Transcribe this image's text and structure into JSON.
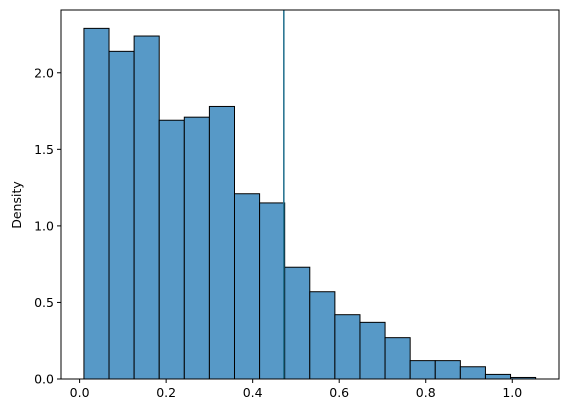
{
  "chart_data": {
    "type": "bar",
    "subtype": "histogram",
    "title": "",
    "xlabel": "",
    "ylabel": "Density",
    "xlim": [
      -0.043,
      1.108
    ],
    "ylim": [
      0,
      2.41
    ],
    "xticks": [
      0.0,
      0.2,
      0.4,
      0.6,
      0.8,
      1.0
    ],
    "xtick_labels": [
      "0.0",
      "0.2",
      "0.4",
      "0.6",
      "0.8",
      "1.0"
    ],
    "yticks": [
      0.0,
      0.5,
      1.0,
      1.5,
      2.0
    ],
    "ytick_labels": [
      "0.0",
      "0.5",
      "1.0",
      "1.5",
      "2.0"
    ],
    "grid": false,
    "bar_color": "#5799c7",
    "edge_color": "#000000",
    "bins": [
      {
        "x0": 0.01,
        "x1": 0.068,
        "value": 2.29
      },
      {
        "x0": 0.068,
        "x1": 0.126,
        "value": 2.14
      },
      {
        "x0": 0.126,
        "x1": 0.184,
        "value": 2.24
      },
      {
        "x0": 0.184,
        "x1": 0.242,
        "value": 1.69
      },
      {
        "x0": 0.242,
        "x1": 0.3,
        "value": 1.71
      },
      {
        "x0": 0.3,
        "x1": 0.358,
        "value": 1.78
      },
      {
        "x0": 0.358,
        "x1": 0.416,
        "value": 1.21
      },
      {
        "x0": 0.416,
        "x1": 0.474,
        "value": 1.15
      },
      {
        "x0": 0.474,
        "x1": 0.532,
        "value": 0.73
      },
      {
        "x0": 0.532,
        "x1": 0.59,
        "value": 0.57
      },
      {
        "x0": 0.59,
        "x1": 0.648,
        "value": 0.42
      },
      {
        "x0": 0.648,
        "x1": 0.706,
        "value": 0.37
      },
      {
        "x0": 0.706,
        "x1": 0.764,
        "value": 0.27
      },
      {
        "x0": 0.764,
        "x1": 0.822,
        "value": 0.12
      },
      {
        "x0": 0.822,
        "x1": 0.88,
        "value": 0.12
      },
      {
        "x0": 0.88,
        "x1": 0.938,
        "value": 0.08
      },
      {
        "x0": 0.938,
        "x1": 0.996,
        "value": 0.03
      },
      {
        "x0": 0.996,
        "x1": 1.054,
        "value": 0.01
      }
    ],
    "vline": {
      "x": 0.472,
      "color": "#1f6e8c"
    }
  }
}
